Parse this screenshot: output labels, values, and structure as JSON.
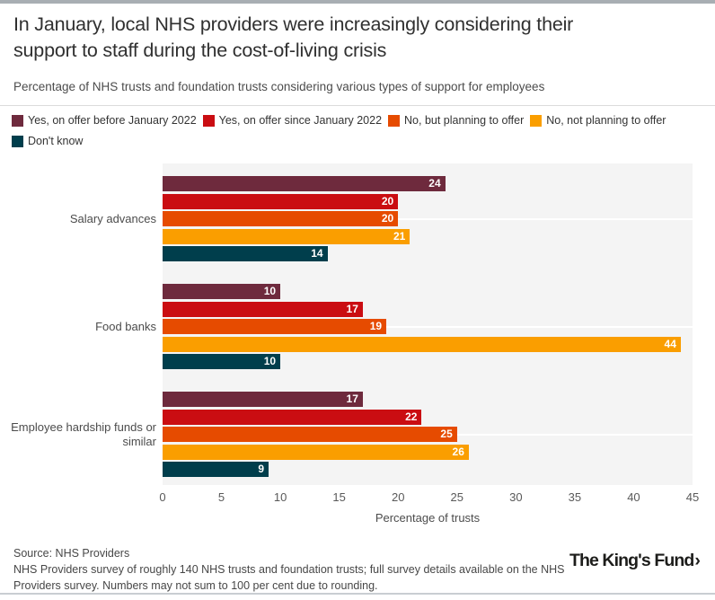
{
  "header": {
    "title": "In January, local NHS providers were increasingly considering their support to staff during the cost-of-living crisis",
    "subtitle": "Percentage of NHS trusts and foundation trusts considering various types of support for employees"
  },
  "chart_data": {
    "type": "bar",
    "orientation": "horizontal",
    "title": "In January, local NHS providers were increasingly considering their support to staff during the cost-of-living crisis",
    "categories": [
      "Salary advances",
      "Food banks",
      "Employee hardship funds or similar"
    ],
    "series": [
      {
        "name": "Yes, on offer before January 2022",
        "color": "#6e2a3d",
        "values": [
          24,
          10,
          17
        ]
      },
      {
        "name": "Yes, on offer since January 2022",
        "color": "#ca0d12",
        "values": [
          20,
          17,
          22
        ]
      },
      {
        "name": "No, but planning to offer",
        "color": "#e64b00",
        "values": [
          20,
          19,
          25
        ]
      },
      {
        "name": "No, not planning to offer",
        "color": "#fa9e00",
        "values": [
          21,
          44,
          26
        ]
      },
      {
        "name": "Don't know",
        "color": "#003e4c",
        "values": [
          14,
          10,
          9
        ]
      }
    ],
    "xlabel": "Percentage of trusts",
    "xlim": [
      0,
      45
    ],
    "xticks": [
      0,
      5,
      10,
      15,
      20,
      25,
      30,
      35,
      40,
      45
    ],
    "legend_position": "top",
    "grid": "horizontal white gridline at each category centre on grey plot background",
    "plot_background": "#f4f4f4",
    "value_labels": "white bold, inside right end of each bar"
  },
  "footer": {
    "source": "Source: NHS Providers",
    "note": "NHS Providers survey of roughly 140 NHS trusts and foundation trusts; full survey details available on the NHS Providers survey. Numbers may not sum to 100 per cent due to rounding.",
    "logo_text": "The King's Fund",
    "logo_chevron": "›"
  }
}
